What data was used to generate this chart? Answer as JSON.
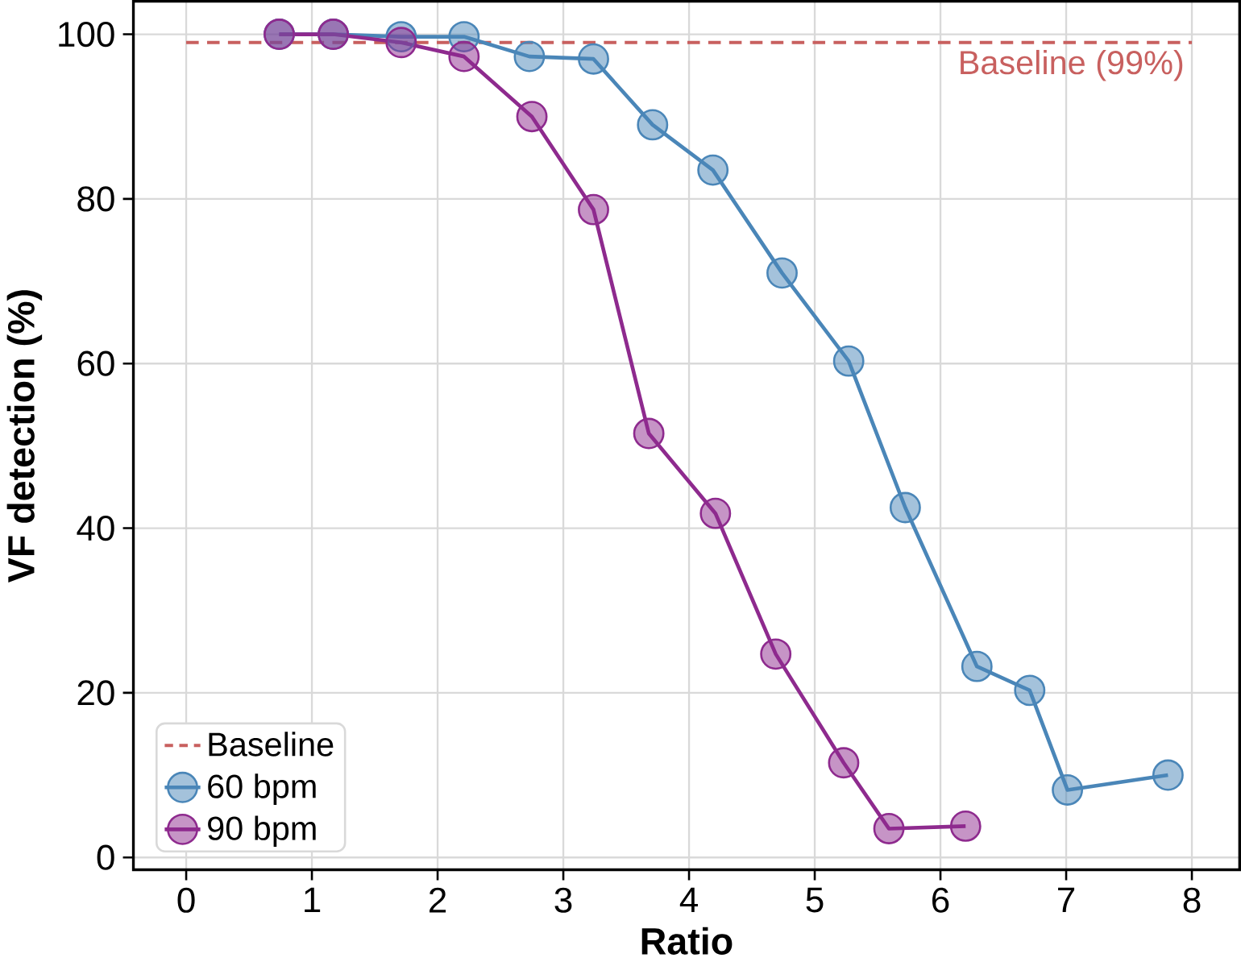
{
  "chart_data": {
    "type": "line",
    "xlabel": "Ratio",
    "ylabel": "VF detection (%)",
    "xlim": [
      -0.42,
      8.38
    ],
    "ylim": [
      -1.5,
      104
    ],
    "xticks": [
      0,
      1,
      2,
      3,
      4,
      5,
      6,
      7,
      8
    ],
    "yticks": [
      0,
      20,
      40,
      60,
      80,
      100
    ],
    "grid": true,
    "legend": "bottom left",
    "marker": "circle",
    "line_style": "solid",
    "annotations": [
      "Baseline"
    ],
    "ref_lines": [
      {
        "axis": "y",
        "value": 99,
        "label": "Baseline (99%)",
        "color": "#c8605f",
        "line_style": "dashed"
      }
    ],
    "series": [
      {
        "name": "60 bpm",
        "color": "#4a86b8",
        "x": [
          0.74,
          1.17,
          1.71,
          2.21,
          2.73,
          3.24,
          3.71,
          4.19,
          4.74,
          5.27,
          5.72,
          6.29,
          6.71,
          7.01,
          7.81
        ],
        "values": [
          100,
          100,
          99.7,
          99.7,
          97.3,
          97,
          89,
          83.5,
          71,
          60.3,
          42.5,
          23.2,
          20.3,
          8.2,
          10
        ]
      },
      {
        "name": "90 bpm",
        "color": "#8e2a8e",
        "x": [
          0.74,
          1.17,
          1.71,
          2.21,
          2.75,
          3.24,
          3.68,
          4.21,
          4.69,
          5.23,
          5.59,
          6.2
        ],
        "values": [
          100,
          100,
          99,
          97.3,
          90,
          78.7,
          51.5,
          41.8,
          24.7,
          11.5,
          3.5,
          3.8
        ]
      }
    ]
  }
}
